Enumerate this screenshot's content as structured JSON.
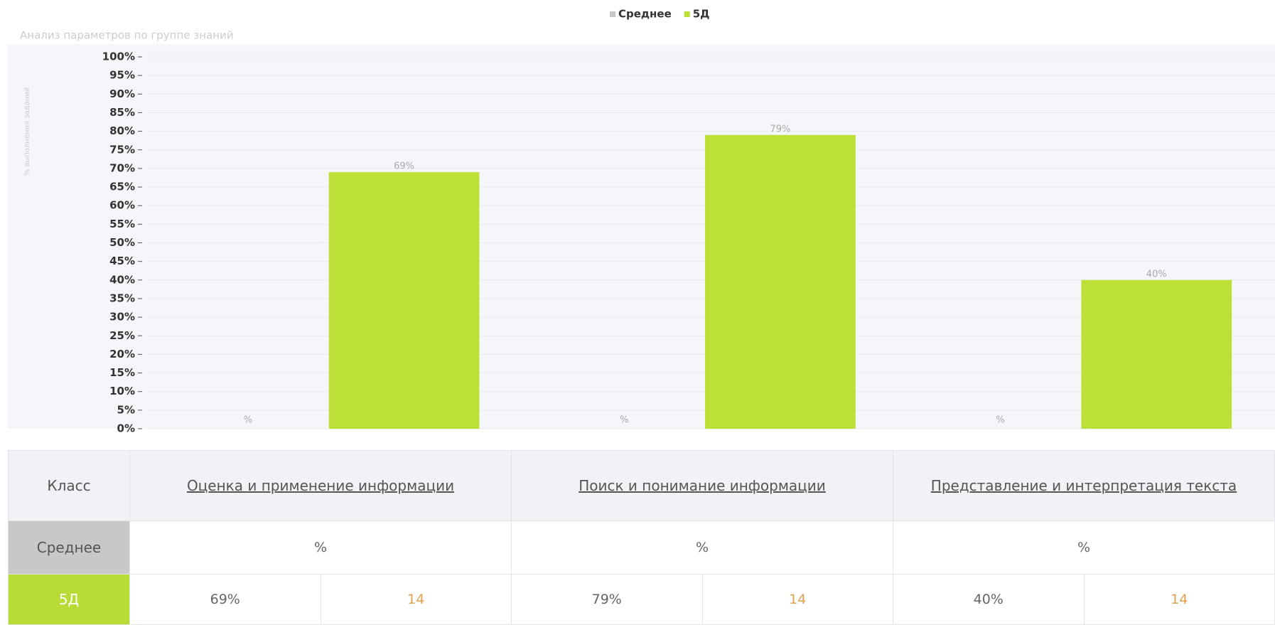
{
  "chart_data": {
    "type": "bar",
    "title": "Анализ параметров по группе знаний",
    "y_label": "% выполнения заданий",
    "categories": [
      "Оценка и применение информации",
      "Поиск и понимание информации",
      "Представление и интерпретация текста"
    ],
    "series": [
      {
        "name": "Среднее",
        "color": "#c8c8c8",
        "values": [
          null,
          null,
          null
        ],
        "value_labels": [
          "%",
          "%",
          "%"
        ]
      },
      {
        "name": "5Д",
        "color": "#bde038",
        "values": [
          69,
          79,
          40
        ],
        "value_labels": [
          "69%",
          "79%",
          "40%"
        ]
      }
    ],
    "ylim": [
      0,
      100
    ],
    "yticks": [
      {
        "value": 0,
        "label": "0%"
      },
      {
        "value": 5,
        "label": "5%"
      },
      {
        "value": 10,
        "label": "10%"
      },
      {
        "value": 15,
        "label": "15%"
      },
      {
        "value": 20,
        "label": "20%"
      },
      {
        "value": 25,
        "label": "25%"
      },
      {
        "value": 30,
        "label": "30%"
      },
      {
        "value": 35,
        "label": "35%"
      },
      {
        "value": 40,
        "label": "40%"
      },
      {
        "value": 45,
        "label": "45%"
      },
      {
        "value": 50,
        "label": "50%"
      },
      {
        "value": 55,
        "label": "55%"
      },
      {
        "value": 60,
        "label": "60%"
      },
      {
        "value": 65,
        "label": "65%"
      },
      {
        "value": 70,
        "label": "70%"
      },
      {
        "value": 75,
        "label": "75%"
      },
      {
        "value": 80,
        "label": "80%"
      },
      {
        "value": 85,
        "label": "85%"
      },
      {
        "value": 90,
        "label": "90%"
      },
      {
        "value": 95,
        "label": "95%"
      },
      {
        "value": 100,
        "label": "100%"
      }
    ],
    "grid": true,
    "legend": "top"
  },
  "table": {
    "header": [
      "Класс",
      "Оценка и применение информации",
      "Поиск и понимание информации",
      "Представление и интерпретация текста"
    ],
    "rows": [
      {
        "label": "Среднее",
        "cells": [
          "%",
          "%",
          "%"
        ]
      },
      {
        "label": "5Д",
        "cells": [
          "69%",
          "14",
          "79%",
          "14",
          "40%",
          "14"
        ]
      }
    ]
  }
}
